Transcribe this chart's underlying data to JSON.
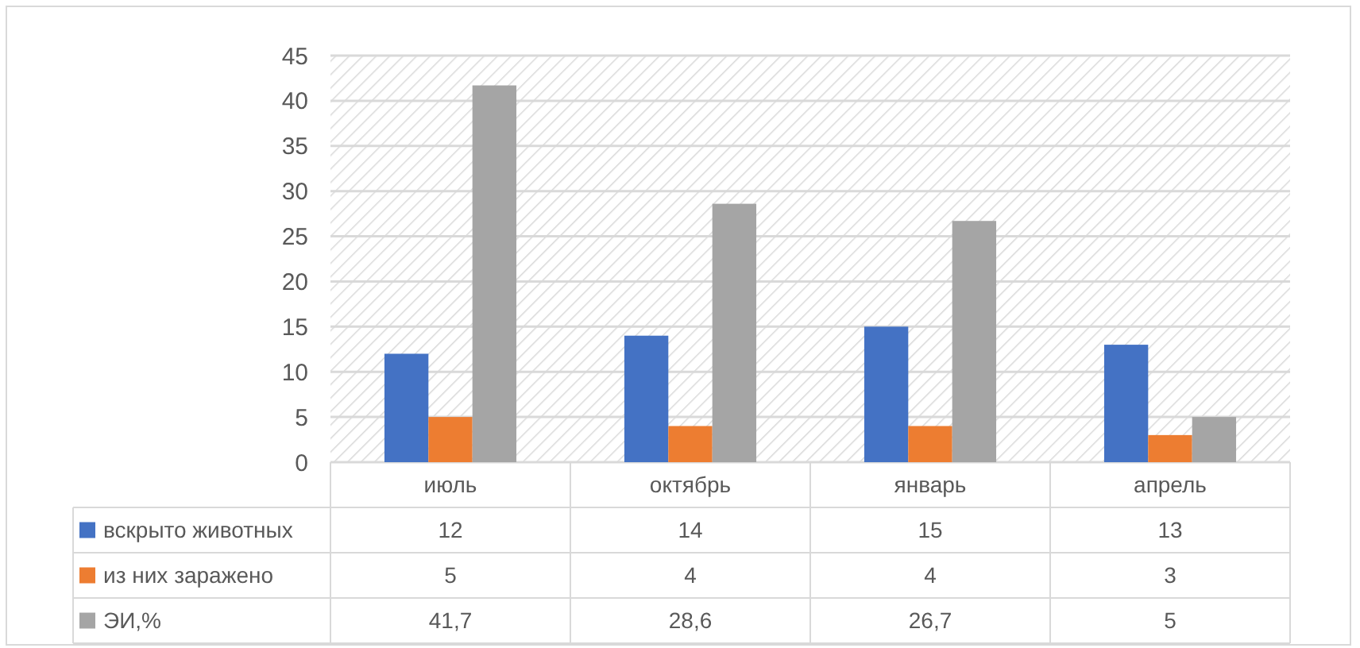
{
  "chart_data": {
    "type": "bar",
    "categories": [
      "июль",
      "октябрь",
      "январь",
      "апрель"
    ],
    "series": [
      {
        "name": "вскрыто животных",
        "color": "#4472c4",
        "values": [
          12,
          14,
          15,
          13
        ],
        "value_labels": [
          "12",
          "14",
          "15",
          "13"
        ]
      },
      {
        "name": "из них  заражено",
        "color": "#ed7d31",
        "values": [
          5,
          4,
          4,
          3
        ],
        "value_labels": [
          "5",
          "4",
          "4",
          "3"
        ]
      },
      {
        "name": "ЭИ,%",
        "color": "#a5a5a5",
        "values": [
          41.7,
          28.6,
          26.7,
          5
        ],
        "value_labels": [
          "41,7",
          "28,6",
          "26,7",
          "5"
        ]
      }
    ],
    "ylim": [
      0,
      45
    ],
    "yticks": [
      0,
      5,
      10,
      15,
      20,
      25,
      30,
      35,
      40,
      45
    ],
    "grid": "y",
    "legend": "bottom"
  }
}
